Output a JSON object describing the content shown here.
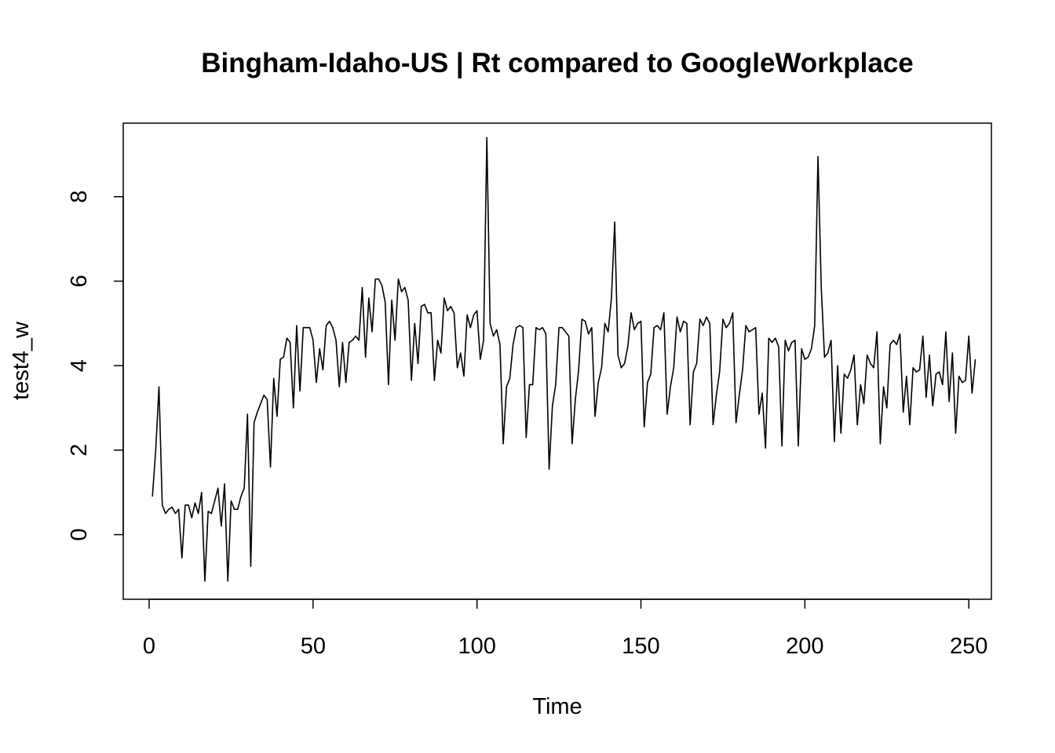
{
  "chart_data": {
    "type": "line",
    "title": "Bingham-Idaho-US | Rt compared to GoogleWorkplace",
    "xlabel": "Time",
    "ylabel": "test4_w",
    "xlim": [
      -7.9,
      256.9
    ],
    "ylim": [
      -1.53,
      9.74
    ],
    "x_ticks": [
      0,
      50,
      100,
      150,
      200,
      250
    ],
    "y_ticks": [
      0,
      2,
      4,
      6,
      8
    ],
    "grid": false,
    "legend": "none",
    "line_color": "#000000",
    "series": [
      {
        "x_start": 1,
        "x_step": 1,
        "values": [
          0.9,
          2.0,
          3.5,
          0.7,
          0.5,
          0.6,
          0.65,
          0.5,
          0.6,
          -0.55,
          0.7,
          0.7,
          0.4,
          0.75,
          0.5,
          1.0,
          -1.1,
          0.55,
          0.5,
          0.8,
          1.1,
          0.2,
          1.2,
          -1.1,
          0.8,
          0.6,
          0.6,
          0.9,
          1.1,
          2.85,
          -0.75,
          2.65,
          2.9,
          3.1,
          3.3,
          3.2,
          1.6,
          3.7,
          2.8,
          4.15,
          4.2,
          4.65,
          4.55,
          3.0,
          4.95,
          3.4,
          4.9,
          4.9,
          4.9,
          4.6,
          3.6,
          4.4,
          3.9,
          4.95,
          5.05,
          4.9,
          4.6,
          3.5,
          4.55,
          3.6,
          4.55,
          4.6,
          4.7,
          4.6,
          5.85,
          4.2,
          5.6,
          4.8,
          6.05,
          6.05,
          5.9,
          5.5,
          3.55,
          5.55,
          4.6,
          6.05,
          5.75,
          5.85,
          5.55,
          3.65,
          5.0,
          4.05,
          5.4,
          5.45,
          5.25,
          5.25,
          3.65,
          4.6,
          4.3,
          5.6,
          5.3,
          5.4,
          5.25,
          3.95,
          4.3,
          3.75,
          5.2,
          4.9,
          5.2,
          5.3,
          4.15,
          4.6,
          9.4,
          5.0,
          4.7,
          4.85,
          4.5,
          2.15,
          3.5,
          3.7,
          4.5,
          4.9,
          4.95,
          4.9,
          2.3,
          3.55,
          3.55,
          4.9,
          4.85,
          4.9,
          4.75,
          1.55,
          3.05,
          3.55,
          4.9,
          4.9,
          4.8,
          4.7,
          2.15,
          3.2,
          3.9,
          5.1,
          5.05,
          4.75,
          4.9,
          2.8,
          3.6,
          3.95,
          5.0,
          4.8,
          5.6,
          7.4,
          4.25,
          3.95,
          4.05,
          4.45,
          5.25,
          4.85,
          5.0,
          5.05,
          2.55,
          3.6,
          3.8,
          4.9,
          4.95,
          4.85,
          5.25,
          2.85,
          3.5,
          3.95,
          5.15,
          4.8,
          5.05,
          5.0,
          2.6,
          3.85,
          4.05,
          5.1,
          4.95,
          5.15,
          5.0,
          2.6,
          3.3,
          3.85,
          5.1,
          4.9,
          5.0,
          5.25,
          2.65,
          3.3,
          3.9,
          4.95,
          4.8,
          4.85,
          4.9,
          2.85,
          3.35,
          2.05,
          4.65,
          4.55,
          4.65,
          4.45,
          2.1,
          4.6,
          4.35,
          4.55,
          4.6,
          2.1,
          4.4,
          4.15,
          4.2,
          4.4,
          4.95,
          8.95,
          5.85,
          4.2,
          4.3,
          4.6,
          2.2,
          4.0,
          2.4,
          3.8,
          3.7,
          3.9,
          4.25,
          2.6,
          3.55,
          3.1,
          4.25,
          4.05,
          3.95,
          4.8,
          2.15,
          3.5,
          3.0,
          4.5,
          4.6,
          4.5,
          4.75,
          2.9,
          3.75,
          2.6,
          3.95,
          3.85,
          3.9,
          4.7,
          3.25,
          4.25,
          3.05,
          3.8,
          3.85,
          3.55,
          4.8,
          3.15,
          4.3,
          2.4,
          3.75,
          3.6,
          3.65,
          4.7,
          3.35,
          4.15
        ]
      }
    ]
  }
}
